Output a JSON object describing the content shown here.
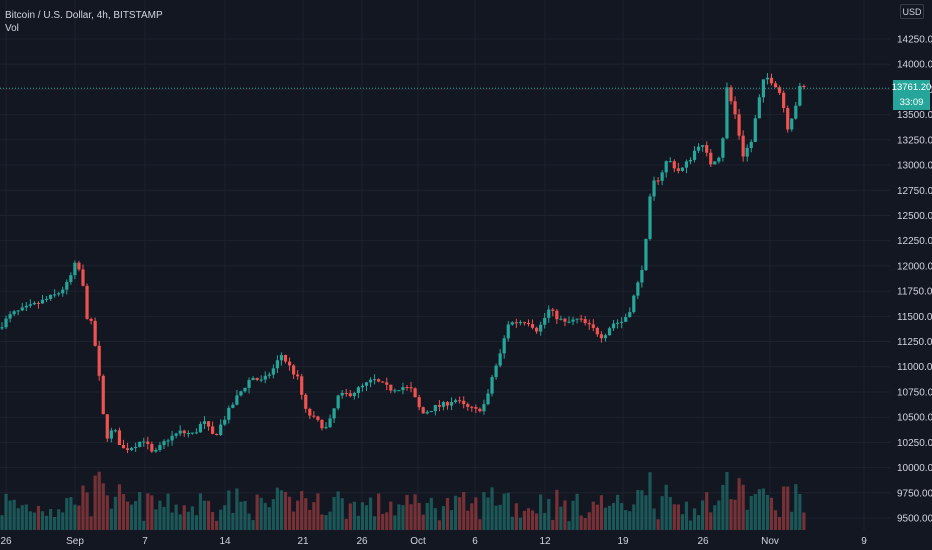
{
  "header": {
    "symbol_line": "Bitcoin / U.S. Dollar, 4h, BITSTAMP",
    "indicator": "Vol"
  },
  "currency_badge": "USD",
  "price_tag": {
    "price": "13761.20",
    "countdown": "33:09"
  },
  "colors": {
    "background": "#131722",
    "up": "#26a69a",
    "down": "#ef5350",
    "grid": "#1e222d",
    "price_line": "#26a69a"
  },
  "chart_data": {
    "type": "candlestick",
    "ylim": [
      9400,
      14500
    ],
    "y_ticks": [
      "14250.00",
      "14000.00",
      "13750.00",
      "13500.00",
      "13250.00",
      "13000.00",
      "12750.00",
      "12500.00",
      "12250.00",
      "12000.00",
      "11750.00",
      "11500.00",
      "11250.00",
      "11000.00",
      "10750.00",
      "10500.00",
      "10250.00",
      "10000.00",
      "9750.00",
      "9500.00"
    ],
    "x_ticks": [
      "26",
      "Sep",
      "7",
      "14",
      "21",
      "26",
      "Oct",
      "6",
      "12",
      "19",
      "26",
      "Nov",
      "9"
    ],
    "current_price": 13761.2,
    "keypoints": [
      {
        "t": 0,
        "p": 11380
      },
      {
        "t": 10,
        "p": 11520
      },
      {
        "t": 25,
        "p": 11600
      },
      {
        "t": 44,
        "p": 11720
      },
      {
        "t": 52,
        "p": 11830
      },
      {
        "t": 58,
        "p": 12040
      },
      {
        "t": 62,
        "p": 11880
      },
      {
        "t": 66,
        "p": 11500
      },
      {
        "t": 70,
        "p": 11400
      },
      {
        "t": 74,
        "p": 11020
      },
      {
        "t": 77,
        "p": 10620
      },
      {
        "t": 80,
        "p": 10300
      },
      {
        "t": 86,
        "p": 10380
      },
      {
        "t": 92,
        "p": 10180
      },
      {
        "t": 98,
        "p": 10200
      },
      {
        "t": 108,
        "p": 10280
      },
      {
        "t": 115,
        "p": 10120
      },
      {
        "t": 125,
        "p": 10280
      },
      {
        "t": 135,
        "p": 10350
      },
      {
        "t": 145,
        "p": 10330
      },
      {
        "t": 152,
        "p": 10460
      },
      {
        "t": 160,
        "p": 10300
      },
      {
        "t": 170,
        "p": 10540
      },
      {
        "t": 178,
        "p": 10720
      },
      {
        "t": 188,
        "p": 10900
      },
      {
        "t": 196,
        "p": 10850
      },
      {
        "t": 204,
        "p": 10980
      },
      {
        "t": 210,
        "p": 11120
      },
      {
        "t": 216,
        "p": 11000
      },
      {
        "t": 222,
        "p": 10880
      },
      {
        "t": 228,
        "p": 10560
      },
      {
        "t": 235,
        "p": 10470
      },
      {
        "t": 244,
        "p": 10380
      },
      {
        "t": 252,
        "p": 10700
      },
      {
        "t": 262,
        "p": 10740
      },
      {
        "t": 270,
        "p": 10800
      },
      {
        "t": 278,
        "p": 10870
      },
      {
        "t": 290,
        "p": 10780
      },
      {
        "t": 300,
        "p": 10800
      },
      {
        "t": 306,
        "p": 10770
      },
      {
        "t": 314,
        "p": 10530
      },
      {
        "t": 322,
        "p": 10590
      },
      {
        "t": 330,
        "p": 10620
      },
      {
        "t": 338,
        "p": 10680
      },
      {
        "t": 346,
        "p": 10600
      },
      {
        "t": 355,
        "p": 10560
      },
      {
        "t": 362,
        "p": 10650
      },
      {
        "t": 366,
        "p": 10900
      },
      {
        "t": 372,
        "p": 11120
      },
      {
        "t": 378,
        "p": 11430
      },
      {
        "t": 392,
        "p": 11460
      },
      {
        "t": 400,
        "p": 11360
      },
      {
        "t": 408,
        "p": 11560
      },
      {
        "t": 420,
        "p": 11430
      },
      {
        "t": 430,
        "p": 11470
      },
      {
        "t": 440,
        "p": 11380
      },
      {
        "t": 448,
        "p": 11300
      },
      {
        "t": 455,
        "p": 11430
      },
      {
        "t": 463,
        "p": 11450
      },
      {
        "t": 468,
        "p": 11570
      },
      {
        "t": 474,
        "p": 11820
      },
      {
        "t": 479,
        "p": 12100
      },
      {
        "t": 484,
        "p": 12800
      },
      {
        "t": 490,
        "p": 12880
      },
      {
        "t": 496,
        "p": 13060
      },
      {
        "t": 505,
        "p": 12930
      },
      {
        "t": 512,
        "p": 13050
      },
      {
        "t": 520,
        "p": 13230
      },
      {
        "t": 528,
        "p": 13020
      },
      {
        "t": 536,
        "p": 13120
      },
      {
        "t": 540,
        "p": 13760
      },
      {
        "t": 546,
        "p": 13500
      },
      {
        "t": 552,
        "p": 13100
      },
      {
        "t": 558,
        "p": 13230
      },
      {
        "t": 563,
        "p": 13600
      },
      {
        "t": 568,
        "p": 13880
      },
      {
        "t": 575,
        "p": 13820
      },
      {
        "t": 580,
        "p": 13700
      },
      {
        "t": 585,
        "p": 13380
      },
      {
        "t": 590,
        "p": 13550
      },
      {
        "t": 594,
        "p": 13761
      }
    ]
  }
}
